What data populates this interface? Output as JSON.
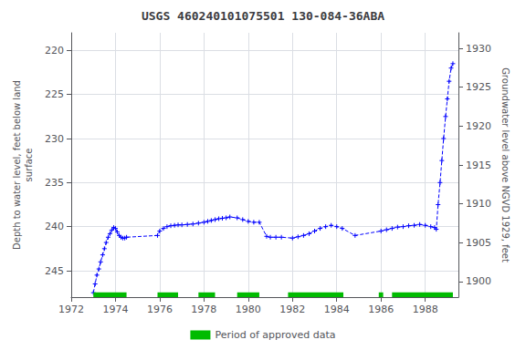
{
  "chart_data": {
    "type": "line",
    "title": "USGS 460240101075501 130-084-36ABA",
    "ylabel": "Depth to water level, feet below land\nsurface",
    "y2label": "Groundwater level above NGVD 1929, feet",
    "xlim": [
      1972,
      1989.5
    ],
    "xticks": [
      1972,
      1974,
      1976,
      1978,
      1980,
      1982,
      1984,
      1986,
      1988
    ],
    "ylim": [
      248,
      218
    ],
    "yticks": [
      220,
      225,
      230,
      235,
      240,
      245
    ],
    "y2lim": [
      1898,
      1932
    ],
    "y2ticks": [
      1900,
      1905,
      1910,
      1915,
      1920,
      1925,
      1930
    ],
    "grid": true,
    "legend": "bottom",
    "x": [
      1973.0,
      1973.08,
      1973.16,
      1973.25,
      1973.33,
      1973.42,
      1973.5,
      1973.58,
      1973.67,
      1973.75,
      1973.83,
      1973.92,
      1974.0,
      1974.08,
      1974.17,
      1974.25,
      1974.33,
      1974.42,
      1974.5,
      1975.9,
      1976.0,
      1976.17,
      1976.33,
      1976.5,
      1976.67,
      1976.83,
      1977.0,
      1977.25,
      1977.5,
      1977.75,
      1978.0,
      1978.17,
      1978.33,
      1978.5,
      1978.67,
      1978.83,
      1979.0,
      1979.17,
      1979.5,
      1979.75,
      1980.0,
      1980.25,
      1980.5,
      1980.83,
      1981.0,
      1981.25,
      1981.5,
      1982.0,
      1982.25,
      1982.5,
      1982.75,
      1983.0,
      1983.25,
      1983.5,
      1983.75,
      1984.0,
      1984.25,
      1984.83,
      1986.0,
      1986.25,
      1986.5,
      1986.75,
      1987.0,
      1987.25,
      1987.5,
      1987.75,
      1988.0,
      1988.25,
      1988.42,
      1988.5,
      1988.58,
      1988.67,
      1988.75,
      1988.83,
      1988.92,
      1989.0,
      1989.08,
      1989.17,
      1989.25
    ],
    "series": [
      {
        "type": "line",
        "color": "#0000ff",
        "line_style": "dashed",
        "marker": "plus",
        "values": [
          247.5,
          246.5,
          245.5,
          244.8,
          244.0,
          243.2,
          242.5,
          241.8,
          241.2,
          240.8,
          240.4,
          240.1,
          240.2,
          240.6,
          241.0,
          241.2,
          241.3,
          241.3,
          241.2,
          241.0,
          240.5,
          240.2,
          240.0,
          239.9,
          239.85,
          239.8,
          239.8,
          239.75,
          239.7,
          239.6,
          239.5,
          239.4,
          239.3,
          239.2,
          239.1,
          239.05,
          239.0,
          238.9,
          239.0,
          239.2,
          239.4,
          239.5,
          239.5,
          241.1,
          241.2,
          241.2,
          241.2,
          241.3,
          241.15,
          241.0,
          240.8,
          240.5,
          240.2,
          240.0,
          239.85,
          240.0,
          240.2,
          241.0,
          240.5,
          240.35,
          240.2,
          240.05,
          240.0,
          239.9,
          239.85,
          239.75,
          239.85,
          240.0,
          240.1,
          240.3,
          237.5,
          235.0,
          232.5,
          230.0,
          227.5,
          225.5,
          223.5,
          222.0,
          221.5
        ]
      },
      {
        "type": "span",
        "name": "Period of approved data",
        "color": "#00bb00",
        "ranges": [
          [
            1973.0,
            1974.5
          ],
          [
            1975.9,
            1976.83
          ],
          [
            1977.75,
            1978.5
          ],
          [
            1979.5,
            1980.5
          ],
          [
            1981.8,
            1984.3
          ],
          [
            1985.9,
            1986.1
          ],
          [
            1986.5,
            1989.25
          ]
        ]
      }
    ]
  }
}
